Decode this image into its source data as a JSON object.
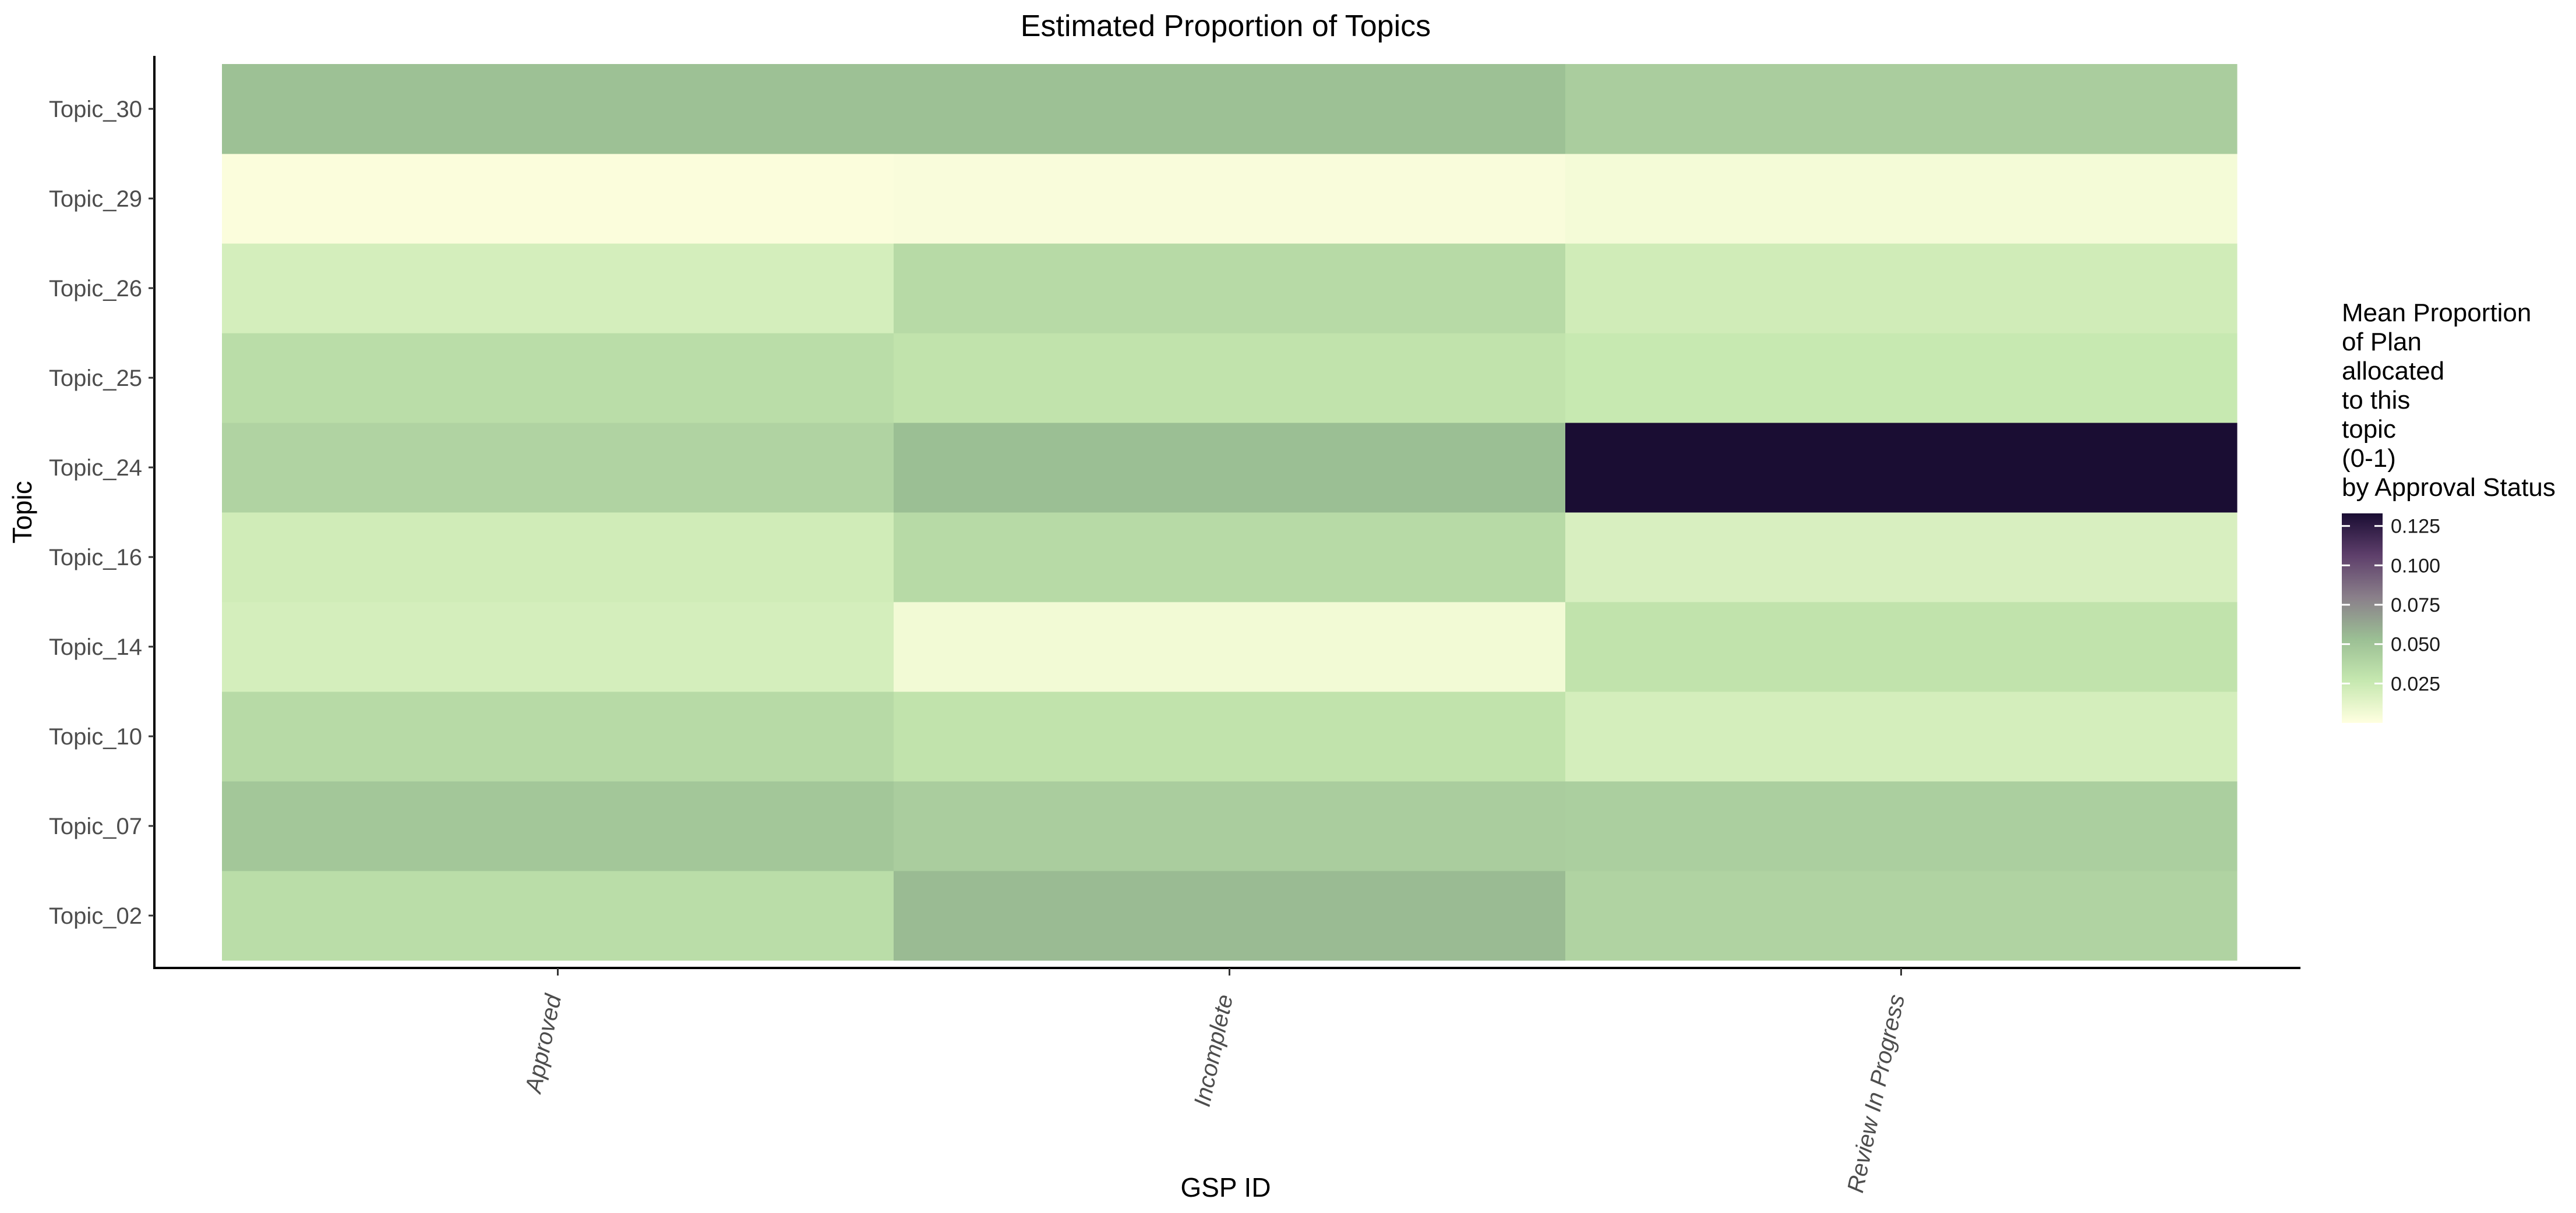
{
  "chart_data": {
    "type": "heatmap",
    "title": "Estimated Proportion of Topics",
    "xlabel": "GSP ID",
    "ylabel": "Topic",
    "x_categories": [
      "Approved",
      "Incomplete",
      "Review In Progress"
    ],
    "y_categories": [
      "Topic_02",
      "Topic_07",
      "Topic_10",
      "Topic_14",
      "Topic_16",
      "Topic_24",
      "Topic_25",
      "Topic_26",
      "Topic_29",
      "Topic_30"
    ],
    "values": [
      [
        0.034,
        0.055,
        0.04
      ],
      [
        0.048,
        0.044,
        0.043
      ],
      [
        0.036,
        0.03,
        0.02
      ],
      [
        0.02,
        0.006,
        0.03
      ],
      [
        0.022,
        0.036,
        0.018
      ],
      [
        0.04,
        0.053,
        0.133
      ],
      [
        0.034,
        0.03,
        0.026
      ],
      [
        0.02,
        0.036,
        0.022
      ],
      [
        0.002,
        0.003,
        0.005
      ],
      [
        0.052,
        0.052,
        0.044
      ]
    ],
    "legend": {
      "title_lines": [
        "Mean Proportion",
        "of Plan",
        "allocated",
        "to this",
        "topic",
        "(0-1)",
        "by Approval Status"
      ],
      "ticks": [
        0.025,
        0.05,
        0.075,
        0.1,
        0.125
      ],
      "tick_labels": [
        "0.025",
        "0.050",
        "0.075",
        "0.100",
        "0.125"
      ],
      "range": [
        0.0,
        0.133
      ],
      "placement": "right"
    },
    "color_scale": [
      "#ffffe0",
      "#c6e8b0",
      "#9bbf94",
      "#8a7f8a",
      "#5e3f6b",
      "#1a0d33"
    ],
    "grid": false
  }
}
